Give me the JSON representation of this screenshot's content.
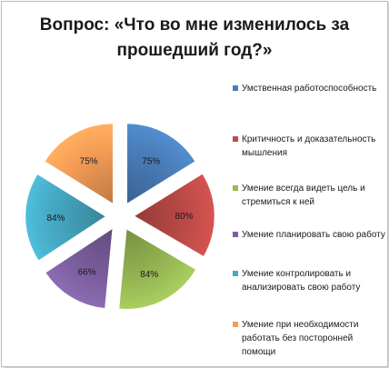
{
  "title_line1": "Вопрос: «Что во мне изменилось за",
  "title_line2": "прошедший год?»",
  "chart_data": {
    "type": "pie",
    "title": "Вопрос: «Что во мне изменилось за прошедший год?»",
    "categories": [
      "Умственная работоспособность",
      "Критичность и доказательность мышления",
      "Умение всегда видеть цель и стремиться к ней",
      "Умение планировать свою работу",
      "Умение контролировать и анализировать свою работу",
      "Умение при необходимости работать без посторонней помощи"
    ],
    "values": [
      75,
      80,
      84,
      66,
      84,
      75
    ],
    "data_labels": [
      "75%",
      "80%",
      "84%",
      "66%",
      "84%",
      "75%"
    ],
    "legend_position": "right",
    "exploded": true,
    "colors": [
      "#4a7ebb",
      "#be4b48",
      "#98b954",
      "#7d60a0",
      "#46aac5",
      "#f59d56"
    ]
  },
  "legend": [
    {
      "lines": [
        "Умственная работоспособность"
      ]
    },
    {
      "lines": [
        "Критичность и доказательность",
        "мышления"
      ]
    },
    {
      "lines": [
        "Умение всегда видеть цель и",
        "стремиться к ней"
      ]
    },
    {
      "lines": [
        "Умение планировать свою работу"
      ]
    },
    {
      "lines": [
        "Умение контролировать и",
        "анализировать свою работу"
      ]
    },
    {
      "lines": [
        "Умение при необходимости",
        "работать без посторонней помощи"
      ]
    }
  ]
}
